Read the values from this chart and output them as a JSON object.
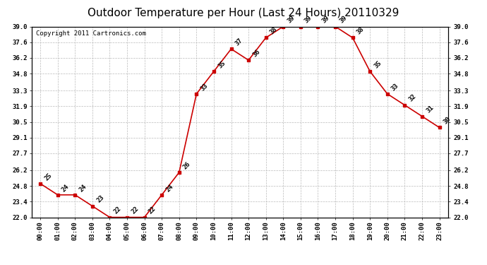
{
  "title": "Outdoor Temperature per Hour (Last 24 Hours) 20110329",
  "copyright": "Copyright 2011 Cartronics.com",
  "hours": [
    "00:00",
    "01:00",
    "02:00",
    "03:00",
    "04:00",
    "05:00",
    "06:00",
    "07:00",
    "08:00",
    "09:00",
    "10:00",
    "11:00",
    "12:00",
    "13:00",
    "14:00",
    "15:00",
    "16:00",
    "17:00",
    "18:00",
    "19:00",
    "20:00",
    "21:00",
    "22:00",
    "23:00"
  ],
  "temps": [
    25,
    24,
    24,
    23,
    22,
    22,
    22,
    24,
    26,
    33,
    35,
    37,
    36,
    38,
    39,
    39,
    39,
    39,
    38,
    35,
    33,
    32,
    31,
    30
  ],
  "line_color": "#cc0000",
  "marker_color": "#cc0000",
  "bg_color": "#ffffff",
  "grid_color": "#bbbbbb",
  "ylim_min": 22.0,
  "ylim_max": 39.0,
  "yticks": [
    22.0,
    23.4,
    24.8,
    26.2,
    27.7,
    29.1,
    30.5,
    31.9,
    33.3,
    34.8,
    36.2,
    37.6,
    39.0
  ],
  "ytick_labels": [
    "22.0",
    "23.4",
    "24.8",
    "26.2",
    "27.7",
    "29.1",
    "30.5",
    "31.9",
    "33.3",
    "34.8",
    "36.2",
    "37.6",
    "39.0"
  ],
  "title_fontsize": 11,
  "copyright_fontsize": 6.5,
  "label_fontsize": 6.5,
  "tick_fontsize": 6.5
}
